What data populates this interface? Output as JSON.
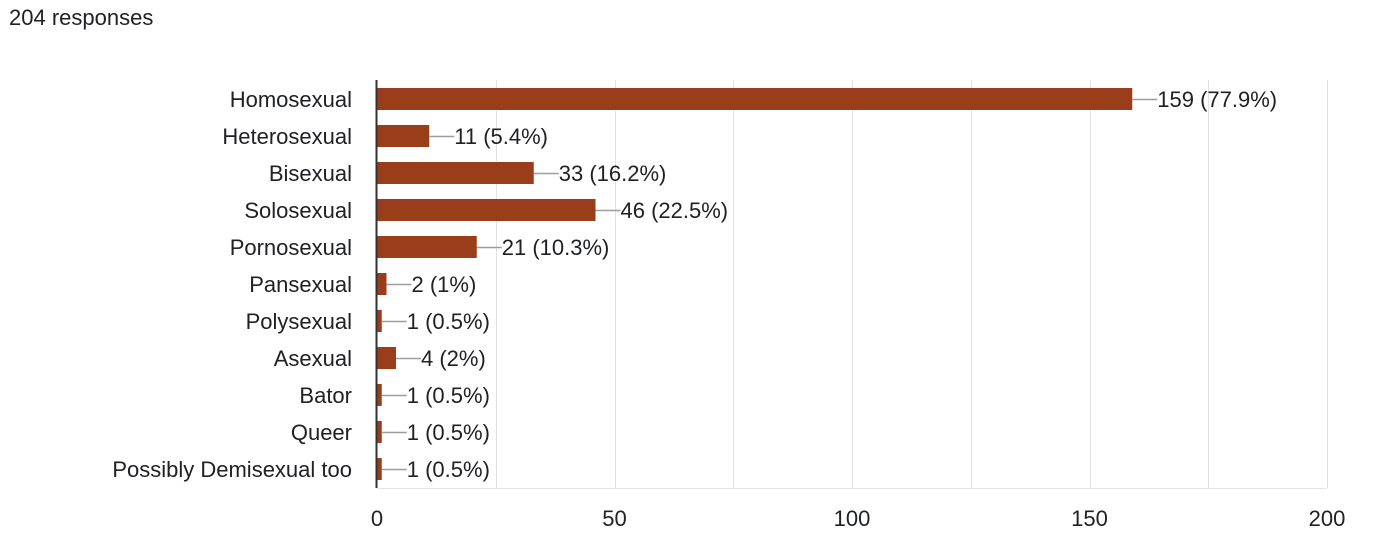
{
  "header": {
    "responses_label": "204 responses"
  },
  "colors": {
    "bar": "#993d1a",
    "grid": "#e3e3e3",
    "axis": "#333333",
    "leader": "#9e9e9e",
    "text": "#202124"
  },
  "chart_data": {
    "type": "bar",
    "orientation": "horizontal",
    "categories": [
      "Homosexual",
      "Heterosexual",
      "Bisexual",
      "Solosexual",
      "Pornosexual",
      "Pansexual",
      "Polysexual",
      "Asexual",
      "Bator",
      "Queer",
      "Possibly Demisexual too"
    ],
    "values": [
      159,
      11,
      33,
      46,
      21,
      2,
      1,
      4,
      1,
      1,
      1
    ],
    "data_labels": [
      "159 (77.9%)",
      "11 (5.4%)",
      "33 (16.2%)",
      "46 (22.5%)",
      "21 (10.3%)",
      "2 (1%)",
      "1 (0.5%)",
      "4 (2%)",
      "1 (0.5%)",
      "1 (0.5%)",
      "1 (0.5%)"
    ],
    "xlim": [
      0,
      200
    ],
    "xticks": [
      0,
      50,
      100,
      150,
      200
    ],
    "xtick_labels": [
      "0",
      "50",
      "100",
      "150",
      "200"
    ],
    "grid": true,
    "legend": "none"
  }
}
